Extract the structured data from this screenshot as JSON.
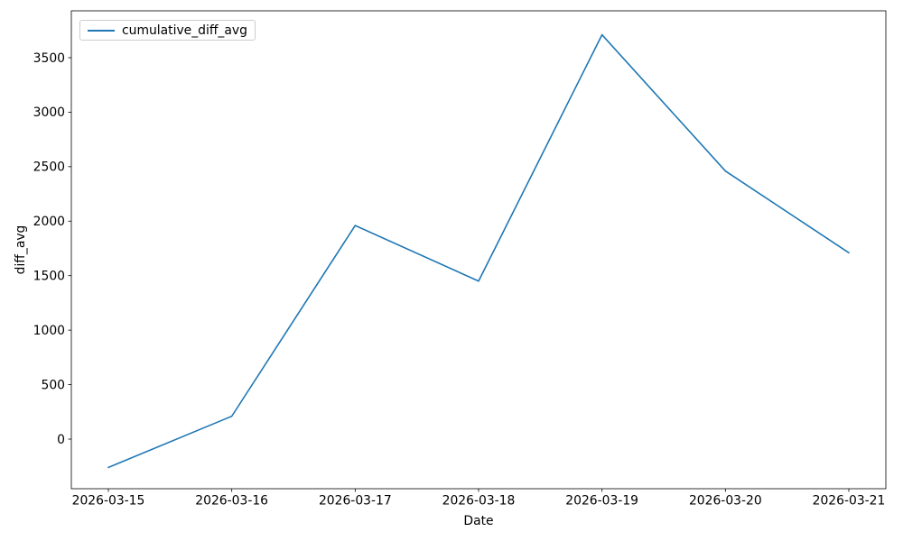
{
  "chart_data": {
    "type": "line",
    "title": "",
    "xlabel": "Date",
    "ylabel": "diff_avg",
    "categories": [
      "2026-03-15",
      "2026-03-16",
      "2026-03-17",
      "2026-03-18",
      "2026-03-19",
      "2026-03-20",
      "2026-03-21"
    ],
    "series": [
      {
        "name": "cumulative_diff_avg",
        "color": "#1f77b4",
        "values": [
          -260,
          210,
          1960,
          1450,
          3710,
          2460,
          1710
        ]
      }
    ],
    "yticks": [
      0,
      500,
      1000,
      1500,
      2000,
      2500,
      3000,
      3500
    ],
    "ylim": [
      -455,
      3930
    ],
    "xlim_pad": 0.3,
    "grid": false,
    "legend_position": "upper left"
  },
  "colors": {
    "line": "#1f77b4",
    "spine": "#000000",
    "legend_border": "#cccccc",
    "background": "#ffffff"
  }
}
